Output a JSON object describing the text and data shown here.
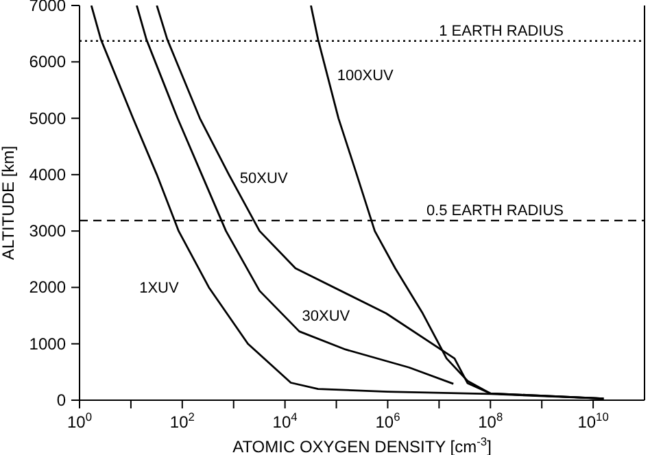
{
  "chart_data": {
    "type": "line",
    "xlabel": "ATOMIC OXYGEN DENSITY [cm$^{-3}$]",
    "ylabel": "ALTITUDE [km]",
    "log": "x",
    "xlim": [
      1,
      100000000000
    ],
    "ylim": [
      0,
      7000
    ],
    "xticks": [
      {
        "value": 1,
        "label": "10$^{0}$"
      },
      {
        "value": 10,
        "label": null
      },
      {
        "value": 100,
        "label": "10$^{2}$"
      },
      {
        "value": 1000,
        "label": null
      },
      {
        "value": 10000,
        "label": "10$^{4}$"
      },
      {
        "value": 100000,
        "label": null
      },
      {
        "value": 1000000,
        "label": "10$^{6}$"
      },
      {
        "value": 10000000,
        "label": null
      },
      {
        "value": 100000000,
        "label": "10$^{8}$"
      },
      {
        "value": 1000000000,
        "label": null
      },
      {
        "value": 10000000000,
        "label": "10$^{10}$"
      }
    ],
    "yticks": [
      0,
      1000,
      2000,
      3000,
      4000,
      5000,
      6000,
      7000
    ],
    "legend": false,
    "marker": "none",
    "line_style": "solid",
    "series": [
      {
        "name": "1XUV",
        "color": "#000000",
        "x": [
          1.7,
          2.6,
          11,
          32,
          85,
          330,
          1900,
          13000,
          44000,
          1000000,
          100000000,
          16000000000
        ],
        "values": [
          7000,
          6400,
          5000,
          4000,
          3000,
          2000,
          1000,
          310,
          200,
          150,
          110,
          30
        ]
      },
      {
        "name": "30XUV",
        "color": "#000000",
        "x": [
          13,
          20,
          81,
          240,
          710,
          3200,
          19000,
          150000,
          2600000,
          19000000
        ],
        "values": [
          7000,
          6400,
          5000,
          4000,
          3000,
          1940,
          1220,
          900,
          580,
          290
        ]
      },
      {
        "name": "50XUV",
        "color": "#000000",
        "x": [
          32,
          51,
          220,
          810,
          3200,
          16000,
          930000,
          20000000,
          36000000,
          100000000,
          16000000000
        ],
        "values": [
          7000,
          6400,
          5000,
          4000,
          3000,
          2340,
          1540,
          740,
          300,
          120,
          30
        ]
      },
      {
        "name": "100XUV",
        "color": "#000000",
        "x": [
          32000,
          44000,
          110000,
          250000,
          560000,
          1400000,
          4800000,
          14000000,
          36000000,
          100000000,
          16000000000
        ],
        "values": [
          7000,
          6400,
          5000,
          4000,
          3000,
          2340,
          1540,
          740,
          340,
          120,
          30
        ]
      }
    ],
    "ref_lines": [
      {
        "axis": "y",
        "value": 6371,
        "label": "1 EARTH RADIUS",
        "line_style": "dotted",
        "color": "#000000"
      },
      {
        "axis": "y",
        "value": 3186,
        "label": "0.5 EARTH RADIUS",
        "line_style": "dashed",
        "color": "#000000"
      }
    ]
  }
}
